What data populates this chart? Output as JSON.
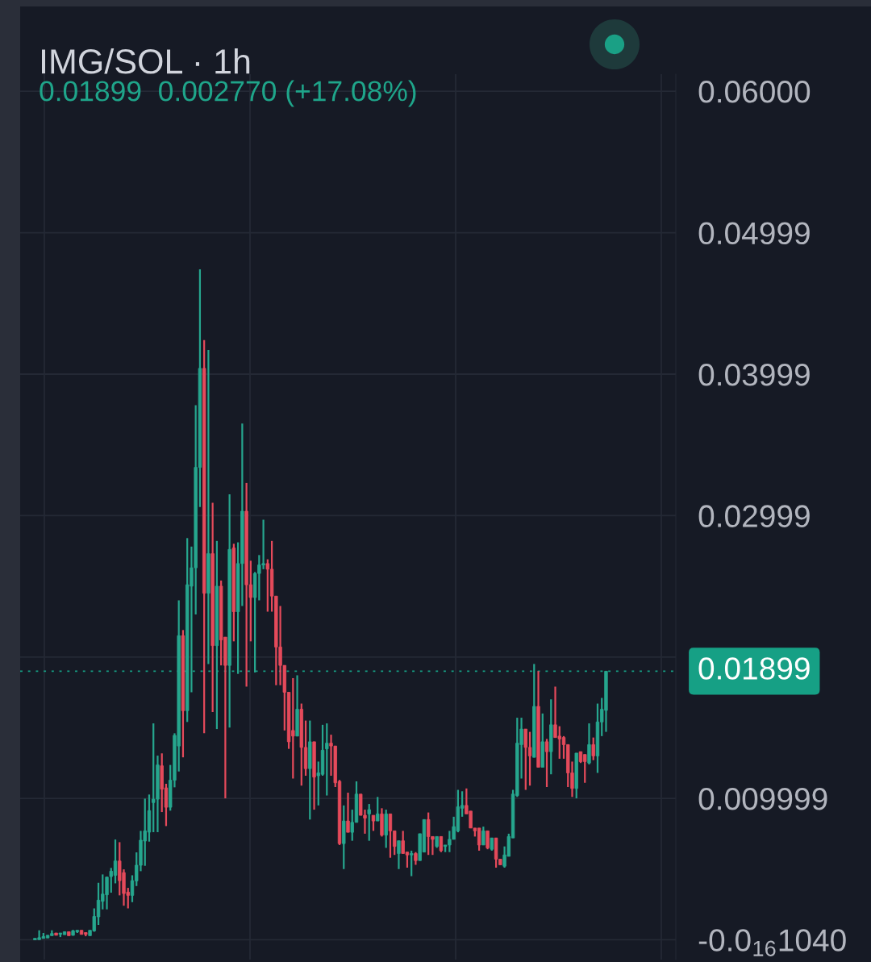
{
  "chart_data": {
    "type": "candlestick",
    "title": "IMG/SOL · 1h",
    "subtitle": "0.01899  0.002770 (+17.08%)",
    "categories": [
      null,
      null,
      null,
      null,
      null,
      null,
      null,
      null,
      null,
      null,
      null,
      null,
      null,
      null,
      null,
      null,
      null,
      null,
      null,
      null,
      null,
      null,
      null,
      null,
      null,
      null,
      null,
      null,
      null,
      null,
      null,
      null,
      null,
      null,
      null,
      null,
      null,
      null,
      null,
      null,
      null,
      null,
      null,
      null,
      null,
      null,
      null,
      null,
      null,
      null,
      null,
      null,
      null,
      null,
      null,
      null,
      null,
      null,
      null,
      null,
      null,
      null,
      null,
      null,
      null,
      null,
      null,
      null,
      null,
      null,
      null,
      null,
      null,
      null,
      null,
      null,
      null,
      null,
      null,
      null,
      null,
      null,
      null,
      null,
      null,
      null,
      null,
      null,
      null,
      null,
      null,
      null,
      null,
      null,
      null,
      null,
      null,
      null,
      null,
      null,
      null,
      null,
      null,
      null,
      null,
      null,
      null,
      null,
      null,
      null,
      null,
      null,
      null,
      null,
      null,
      null,
      null,
      null,
      null,
      null,
      null,
      null,
      null,
      null,
      null,
      null,
      null,
      null,
      null,
      null,
      null,
      null,
      null,
      null,
      null,
      null,
      null,
      null,
      null,
      null,
      null,
      null,
      null,
      null,
      null,
      null,
      null,
      null,
      null,
      null,
      null,
      null,
      null,
      null,
      null
    ],
    "ohlc": [
      null,
      null,
      null,
      [
        0.0,
        0.0001,
        0.0,
        0.0001
      ],
      [
        1e-05,
        0.00067,
        0.0,
        0.00015
      ],
      [
        0.0001,
        0.00048,
        0.0001,
        0.00023
      ],
      [
        0.00013,
        0.00032,
        0.00013,
        0.00032
      ],
      [
        0.00029,
        0.00067,
        0.00029,
        0.00044
      ],
      [
        0.00048,
        0.00048,
        0.00032,
        0.00032
      ],
      [
        0.00038,
        0.00048,
        0.00019,
        0.00048
      ],
      [
        0.00036,
        0.00057,
        0.00036,
        0.00057
      ],
      [
        0.00057,
        0.00057,
        0.00029,
        0.00029
      ],
      [
        0.00032,
        0.0007,
        0.00029,
        0.00063
      ],
      [
        0.00057,
        0.00067,
        0.00048,
        0.00067
      ],
      [
        0.00067,
        0.00067,
        0.00038,
        0.00038
      ],
      [
        0.00051,
        0.00051,
        0.00025,
        0.00038
      ],
      [
        0.00029,
        0.00067,
        0.00029,
        0.00067
      ],
      [
        0.00063,
        0.00222,
        0.00057,
        0.00165
      ],
      [
        0.00162,
        0.00403,
        0.00105,
        0.0028
      ],
      [
        0.00272,
        0.00462,
        0.00215,
        0.00323
      ],
      [
        0.00318,
        0.00447,
        0.00215,
        0.00443
      ],
      [
        0.00447,
        0.00508,
        0.00333,
        0.00485
      ],
      [
        0.00456,
        0.00709,
        0.00399,
        0.00557
      ],
      [
        0.00557,
        0.0069,
        0.00314,
        0.00418
      ],
      [
        0.00475,
        0.00498,
        0.00241,
        0.00327
      ],
      [
        0.00337,
        0.00367,
        0.00222,
        0.00314
      ],
      [
        0.00314,
        0.00456,
        0.00266,
        0.00418
      ],
      [
        0.00416,
        0.00618,
        0.0038,
        0.00527
      ],
      [
        0.00527,
        0.0077,
        0.00485,
        0.00704
      ],
      [
        0.00698,
        0.00998,
        0.00523,
        0.0077
      ],
      [
        0.00761,
        0.01027,
        0.00694,
        0.00913
      ],
      [
        0.0097,
        0.0153,
        0.00761,
        0.00994
      ],
      [
        0.00994,
        0.01302,
        0.00761,
        0.01236
      ],
      [
        0.0123,
        0.01318,
        0.00903,
        0.01065
      ],
      [
        0.01074,
        0.01103,
        0.00804,
        0.00937
      ],
      [
        0.00937,
        0.01236,
        0.00913,
        0.01128
      ],
      [
        0.01128,
        0.0146,
        0.01078,
        0.01445
      ],
      [
        0.0137,
        0.024,
        0.0119,
        0.0215
      ],
      [
        0.0215,
        0.0219,
        0.0129,
        0.0162
      ],
      [
        0.0162,
        0.0284,
        0.0154,
        0.0251
      ],
      [
        0.025,
        0.0278,
        0.0175,
        0.0263
      ],
      [
        0.0263,
        0.0378,
        0.023,
        0.0334
      ],
      [
        0.0334,
        0.0474,
        0.0306,
        0.0404
      ],
      [
        0.0404,
        0.0424,
        0.0146,
        0.0245
      ],
      [
        0.0245,
        0.0417,
        0.0195,
        0.0273
      ],
      [
        0.0273,
        0.0309,
        0.0161,
        0.0208
      ],
      [
        0.0208,
        0.0282,
        0.0149,
        0.025
      ],
      [
        0.025,
        0.0254,
        0.0194,
        0.0212
      ],
      [
        0.0214,
        0.0214,
        0.01,
        0.0194
      ],
      [
        0.0194,
        0.0315,
        0.015,
        0.0276
      ],
      [
        0.0277,
        0.028,
        0.0211,
        0.0232
      ],
      [
        0.0232,
        0.0281,
        0.0188,
        0.0266
      ],
      [
        0.0266,
        0.0365,
        0.0236,
        0.0303
      ],
      [
        0.0303,
        0.0323,
        0.0179,
        0.0251
      ],
      [
        0.0251,
        0.0268,
        0.0211,
        0.0242
      ],
      [
        0.0242,
        0.026,
        0.0189,
        0.0259
      ],
      [
        0.0259,
        0.0272,
        0.024,
        0.0265
      ],
      [
        0.0265,
        0.0297,
        0.0262,
        0.0266
      ],
      [
        0.0266,
        0.0269,
        0.0232,
        0.0262
      ],
      [
        0.0262,
        0.0282,
        0.0232,
        0.0243
      ],
      [
        0.0243,
        0.0243,
        0.018,
        0.0207
      ],
      [
        0.0207,
        0.0236,
        0.018,
        0.0194
      ],
      [
        0.0194,
        0.0194,
        0.0148,
        0.0175
      ],
      [
        0.0175,
        0.0175,
        0.0135,
        0.014
      ],
      [
        0.0148,
        0.0185,
        0.0114,
        0.0144
      ],
      [
        0.0144,
        0.0187,
        0.0144,
        0.0163
      ],
      [
        0.0163,
        0.0167,
        0.0109,
        0.0136
      ],
      [
        0.0136,
        0.0155,
        0.0116,
        0.0121
      ],
      [
        0.0121,
        0.0155,
        0.0085,
        0.014
      ],
      [
        0.014,
        0.014,
        0.0092,
        0.0115
      ],
      [
        0.0116,
        0.0126,
        0.0095,
        0.0118
      ],
      [
        0.0117,
        0.0152,
        0.0116,
        0.0134
      ],
      [
        0.0135,
        0.0153,
        0.0102,
        0.0139
      ],
      [
        0.0139,
        0.0145,
        0.0116,
        0.0137
      ],
      [
        0.0137,
        0.0137,
        0.0108,
        0.0111
      ],
      [
        0.0112,
        0.0113,
        0.0067,
        0.0068
      ],
      [
        0.0068,
        0.0095,
        0.005,
        0.0084
      ],
      [
        0.0084,
        0.0104,
        0.0076,
        0.0076
      ],
      [
        0.0076,
        0.0092,
        0.007,
        0.0083
      ],
      [
        0.0083,
        0.0112,
        0.0083,
        0.0103
      ],
      [
        0.0103,
        0.0103,
        0.0088,
        0.0088
      ],
      [
        0.0088,
        0.0092,
        0.0075,
        0.0086
      ],
      [
        0.0089,
        0.0096,
        0.007,
        0.0092
      ],
      [
        0.0088,
        0.0088,
        0.0077,
        0.0084
      ],
      [
        0.0084,
        0.0101,
        0.0084,
        0.0089
      ],
      [
        0.0089,
        0.0093,
        0.0073,
        0.0074
      ],
      [
        0.0074,
        0.0092,
        0.0065,
        0.0089
      ],
      [
        0.0089,
        0.0089,
        0.0058,
        0.0077
      ],
      [
        0.0077,
        0.0077,
        0.006,
        0.0066
      ],
      [
        0.0061,
        0.007,
        0.005,
        0.007
      ],
      [
        0.007,
        0.0077,
        0.0061,
        0.0061
      ],
      [
        0.0062,
        0.0062,
        0.0051,
        0.006
      ],
      [
        0.006,
        0.0063,
        0.0045,
        0.0061
      ],
      [
        0.0061,
        0.0062,
        0.0053,
        0.0056
      ],
      [
        0.0056,
        0.0075,
        0.0056,
        0.0075
      ],
      [
        0.0062,
        0.0085,
        0.0062,
        0.0085
      ],
      [
        0.0085,
        0.009,
        0.006,
        0.0073
      ],
      [
        0.0073,
        0.0073,
        0.006,
        0.0071
      ],
      [
        0.0066,
        0.0073,
        0.0065,
        0.0073
      ],
      [
        0.0073,
        0.0073,
        0.0062,
        0.0063
      ],
      [
        0.0066,
        0.0067,
        0.0062,
        0.0067
      ],
      [
        0.0067,
        0.0077,
        0.0062,
        0.0071
      ],
      [
        0.0071,
        0.0087,
        0.0071,
        0.008
      ],
      [
        0.0077,
        0.0106,
        0.0076,
        0.0094
      ],
      [
        0.0093,
        0.0105,
        0.0087,
        0.0095
      ],
      [
        0.0095,
        0.0107,
        0.0089,
        0.0089
      ],
      [
        0.0091,
        0.0091,
        0.0079,
        0.0079
      ],
      [
        0.0079,
        0.0079,
        0.0073,
        0.0077
      ],
      [
        0.0079,
        0.0079,
        0.0063,
        0.0067
      ],
      [
        0.0067,
        0.008,
        0.0067,
        0.0077
      ],
      [
        0.0077,
        0.0077,
        0.0064,
        0.0065
      ],
      [
        0.0064,
        0.0072,
        0.0063,
        0.0072
      ],
      [
        0.0072,
        0.0072,
        0.0051,
        0.0057
      ],
      [
        0.0057,
        0.0057,
        0.0053,
        0.0053
      ],
      [
        0.0052,
        0.0066,
        0.0051,
        0.006
      ],
      [
        0.0059,
        0.0075,
        0.0059,
        0.0073
      ],
      [
        0.0072,
        0.0106,
        0.0072,
        0.0103
      ],
      [
        0.0102,
        0.0157,
        0.0101,
        0.0139
      ],
      [
        0.0138,
        0.0157,
        0.0114,
        0.0149
      ],
      [
        0.0149,
        0.0149,
        0.0106,
        0.0136
      ],
      [
        0.0136,
        0.0147,
        0.0109,
        0.013
      ],
      [
        0.0129,
        0.0195,
        0.0129,
        0.0165
      ],
      [
        0.0165,
        0.019,
        0.0122,
        0.0122
      ],
      [
        0.0122,
        0.016,
        0.0122,
        0.014
      ],
      [
        0.014,
        0.0142,
        0.0108,
        0.0133
      ],
      [
        0.0133,
        0.017,
        0.0117,
        0.0152
      ],
      [
        0.0152,
        0.0179,
        0.0143,
        0.0143
      ],
      [
        0.0144,
        0.0151,
        0.0128,
        0.0142
      ],
      [
        0.0143,
        0.0144,
        0.0128,
        0.0138
      ],
      [
        0.0138,
        0.0138,
        0.0108,
        0.0118
      ],
      [
        0.0118,
        0.0126,
        0.0101,
        0.0107
      ],
      [
        0.0107,
        0.0132,
        0.01,
        0.0132
      ],
      [
        0.0133,
        0.0133,
        0.0125,
        0.0126
      ],
      [
        0.0131,
        0.0131,
        0.0111,
        0.0126
      ],
      [
        0.0125,
        0.0153,
        0.0124,
        0.0138
      ],
      [
        0.0138,
        0.0143,
        0.0127,
        0.013
      ],
      [
        0.013,
        0.0167,
        0.0118,
        0.0154
      ],
      [
        0.0154,
        0.0171,
        0.0144,
        0.0163
      ],
      [
        0.01622,
        0.019,
        0.0147,
        0.01899
      ],
      null,
      null,
      null,
      null,
      null,
      null,
      null,
      null,
      null,
      null,
      null,
      null,
      null,
      null,
      null,
      null
    ],
    "colors": [
      null,
      null,
      null,
      "#26a68e",
      "#26a68e",
      "#26a68e",
      "#26a68e",
      "#26a68e",
      "#e54a5b",
      "#26a68e",
      "#26a68e",
      "#e54a5b",
      "#26a68e",
      "#26a68e",
      "#e54a5b",
      "#e54a5b",
      "#26a68e",
      "#26a68e",
      "#26a68e",
      "#26a68e",
      "#26a68e",
      "#26a68e",
      "#26a68e",
      "#e54a5b",
      "#e54a5b",
      "#e54a5b",
      "#26a68e",
      "#26a68e",
      "#26a68e",
      "#26a68e",
      "#26a68e",
      "#26a68e",
      "#26a68e",
      "#e54a5b",
      "#e54a5b",
      "#26a68e",
      "#26a68e",
      "#26a68e",
      "#e54a5b",
      "#26a68e",
      "#26a68e",
      "#26a68e",
      "#26a68e",
      "#e54a5b",
      "#26a68e",
      "#e54a5b",
      "#26a68e",
      "#e54a5b",
      "#e54a5b",
      "#26a68e",
      "#e54a5b",
      "#26a68e",
      "#26a68e",
      "#e54a5b",
      "#e54a5b",
      "#26a68e",
      "#26a68e",
      "#26a68e",
      "#e54a5b",
      "#e54a5b",
      "#e54a5b",
      "#e54a5b",
      "#e54a5b",
      "#e54a5b",
      "#e54a5b",
      "#26a68e",
      "#e54a5b",
      "#e54a5b",
      "#26a68e",
      "#e54a5b",
      "#26a68e",
      "#26a68e",
      "#26a68e",
      "#e54a5b",
      "#e54a5b",
      "#e54a5b",
      "#26a68e",
      "#e54a5b",
      "#26a68e",
      "#26a68e",
      "#e54a5b",
      "#e54a5b",
      "#26a68e",
      "#e54a5b",
      "#26a68e",
      "#e54a5b",
      "#26a68e",
      "#e54a5b",
      "#e54a5b",
      "#26a68e",
      "#e54a5b",
      "#e54a5b",
      "#26a68e",
      "#e54a5b",
      "#26a68e",
      "#26a68e",
      "#e54a5b",
      "#e54a5b",
      "#26a68e",
      "#e54a5b",
      "#26a68e",
      "#26a68e",
      "#26a68e",
      "#26a68e",
      "#26a68e",
      "#e54a5b",
      "#e54a5b",
      "#e54a5b",
      "#e54a5b",
      "#26a68e",
      "#e54a5b",
      "#26a68e",
      "#e54a5b",
      "#e54a5b",
      "#26a68e",
      "#26a68e",
      "#26a68e",
      "#26a68e",
      "#26a68e",
      "#e54a5b",
      "#e54a5b",
      "#26a68e",
      "#e54a5b",
      "#26a68e",
      "#e54a5b",
      "#26a68e",
      "#e54a5b",
      "#e54a5b",
      "#e54a5b",
      "#e54a5b",
      "#e54a5b",
      "#26a68e",
      "#e54a5b",
      "#e54a5b",
      "#26a68e",
      "#e54a5b",
      "#26a68e",
      "#26a68e",
      "#26a68e",
      null,
      null,
      null,
      null,
      null,
      null,
      null,
      null,
      null,
      null,
      null,
      null,
      null,
      null,
      null,
      null
    ],
    "ylim": [
      -0.0014,
      0.0612
    ],
    "yticks": [
      {
        "value": -1.04e-17,
        "label": "-0.0$_{16}$1040"
      },
      0.009999,
      {
        "value": 0.01999,
        "label": null
      },
      0.02999,
      0.03999,
      0.04999,
      {
        "value": 0.06,
        "label": "0.06000"
      }
    ],
    "tick_labels": "y",
    "grid": true,
    "ref_lines": [
      {
        "axis": "y",
        "value": 0.01899,
        "label": "0.01899",
        "color": "#16a085",
        "line_style": "dotted"
      }
    ]
  }
}
